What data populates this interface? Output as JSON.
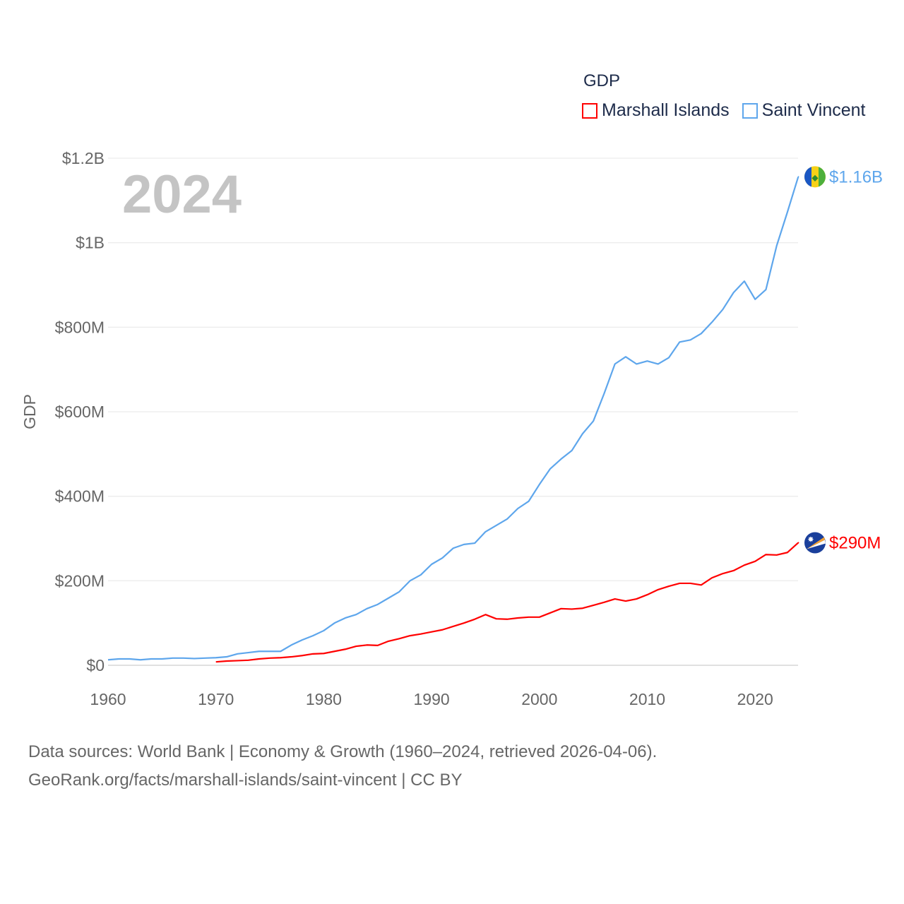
{
  "chart_data": {
    "type": "line",
    "title": "",
    "year_label": "2024",
    "legend_title": "GDP",
    "legend_position": "top-right",
    "ylabel": "GDP",
    "xlabel": "",
    "xlim": [
      1960,
      2024
    ],
    "ylim": [
      0,
      1200
    ],
    "y_unit": "USD millions",
    "grid": true,
    "x_ticks": [
      "1960",
      "1970",
      "1980",
      "1990",
      "2000",
      "2010",
      "2020"
    ],
    "y_ticks": [
      {
        "v": 0,
        "label": "$0"
      },
      {
        "v": 200,
        "label": "$200M"
      },
      {
        "v": 400,
        "label": "$400M"
      },
      {
        "v": 600,
        "label": "$600M"
      },
      {
        "v": 800,
        "label": "$800M"
      },
      {
        "v": 1000,
        "label": "$1B"
      },
      {
        "v": 1200,
        "label": "$1.2B"
      }
    ],
    "series": [
      {
        "name": "Marshall Islands",
        "color": "#ff0000",
        "end_label": "$290M",
        "flag": "marshall-islands",
        "start_year": 1970,
        "values": [
          8,
          10,
          11,
          12,
          15,
          17,
          18,
          20,
          23,
          27,
          28,
          33,
          38,
          45,
          48,
          47,
          57,
          63,
          70,
          74,
          79,
          84,
          92,
          100,
          109,
          120,
          110,
          109,
          112,
          114,
          114,
          124,
          134,
          133,
          135,
          142,
          149,
          157,
          152,
          157,
          167,
          179,
          187,
          194,
          194,
          190,
          207,
          217,
          224,
          237,
          246,
          262,
          261,
          267,
          290
        ]
      },
      {
        "name": "Saint Vincent",
        "color": "#5ea6ec",
        "end_label": "$1.16B",
        "flag": "saint-vincent",
        "start_year": 1960,
        "values": [
          13,
          15,
          15,
          13,
          15,
          15,
          17,
          17,
          16,
          17,
          18,
          20,
          27,
          30,
          33,
          33,
          33,
          48,
          60,
          70,
          82,
          100,
          112,
          120,
          134,
          144,
          159,
          174,
          200,
          214,
          239,
          254,
          277,
          286,
          289,
          316,
          331,
          346,
          371,
          388,
          428,
          465,
          488,
          508,
          548,
          578,
          643,
          713,
          730,
          713,
          720,
          713,
          728,
          765,
          770,
          785,
          812,
          842,
          882,
          909,
          866,
          889,
          993,
          1073,
          1156
        ]
      }
    ]
  },
  "footer": {
    "source_line": "Data sources: World Bank | Economy & Growth (1960–2024, retrieved 2026-04-06).",
    "url_line": "GeoRank.org/facts/marshall-islands/saint-vincent | CC BY"
  }
}
